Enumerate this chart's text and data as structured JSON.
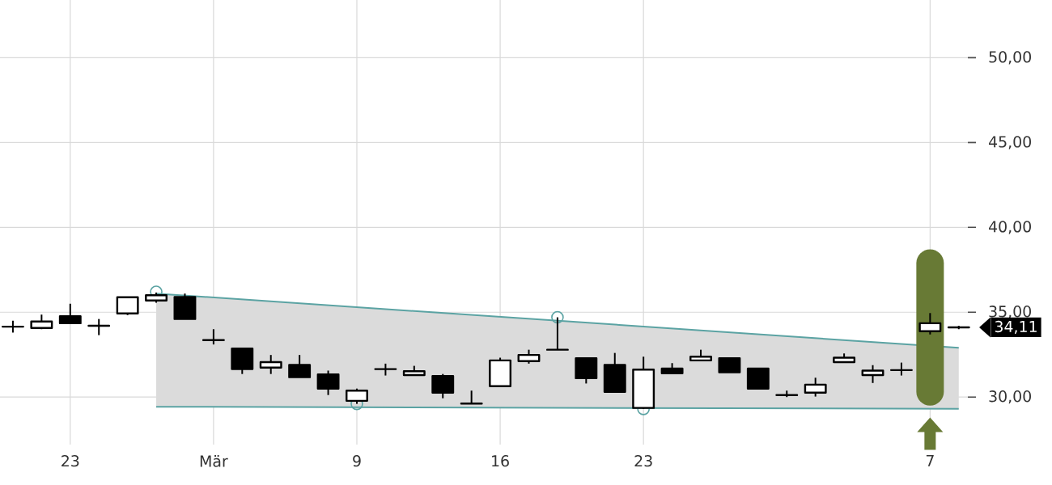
{
  "chart_data": {
    "type": "candlestick",
    "categories": [
      null,
      null,
      "23",
      null,
      null,
      null,
      null,
      "Mär",
      null,
      null,
      null,
      null,
      "9",
      null,
      null,
      null,
      null,
      "16",
      null,
      null,
      null,
      null,
      "23",
      null,
      null,
      null,
      null,
      null,
      null,
      null,
      null,
      null,
      "7",
      null
    ],
    "ohlc": [
      [
        34.15,
        34.5,
        33.8,
        34.15
      ],
      [
        34.07,
        34.86,
        34.0,
        34.45
      ],
      [
        34.76,
        35.5,
        34.35,
        34.35
      ],
      [
        34.2,
        34.6,
        33.65,
        34.2
      ],
      [
        34.93,
        35.88,
        34.83,
        35.88
      ],
      [
        35.69,
        36.16,
        35.56,
        36.0
      ],
      [
        35.9,
        36.1,
        34.6,
        34.6
      ],
      [
        33.36,
        34.0,
        33.1,
        33.36
      ],
      [
        32.86,
        32.86,
        31.36,
        31.65
      ],
      [
        31.74,
        32.48,
        31.36,
        32.06
      ],
      [
        31.9,
        32.48,
        31.17,
        31.17
      ],
      [
        31.33,
        31.56,
        30.12,
        30.5
      ],
      [
        29.78,
        30.5,
        29.6,
        30.38
      ],
      [
        31.65,
        31.97,
        31.27,
        31.65
      ],
      [
        31.3,
        31.84,
        31.3,
        31.52
      ],
      [
        31.24,
        31.36,
        29.93,
        30.26
      ],
      [
        29.62,
        30.38,
        29.62,
        29.62
      ],
      [
        30.64,
        32.32,
        30.64,
        32.16
      ],
      [
        32.12,
        32.79,
        31.97,
        32.48
      ],
      [
        32.79,
        34.7,
        32.79,
        32.79
      ],
      [
        32.29,
        32.29,
        30.8,
        31.11
      ],
      [
        31.9,
        32.6,
        30.31,
        30.31
      ],
      [
        29.36,
        32.38,
        29.3,
        31.62
      ],
      [
        31.68,
        32.0,
        31.4,
        31.4
      ],
      [
        32.16,
        32.79,
        32.16,
        32.38
      ],
      [
        32.29,
        32.29,
        31.46,
        31.46
      ],
      [
        31.68,
        31.68,
        30.5,
        30.5
      ],
      [
        30.12,
        30.38,
        30.0,
        30.12
      ],
      [
        30.26,
        31.14,
        30.03,
        30.73
      ],
      [
        32.06,
        32.57,
        32.06,
        32.32
      ],
      [
        31.3,
        31.88,
        30.83,
        31.56
      ],
      [
        31.59,
        32.03,
        31.27,
        31.59
      ],
      [
        33.88,
        34.95,
        33.69,
        34.35
      ],
      [
        34.11,
        34.2,
        34.0,
        34.11
      ]
    ],
    "series": [
      {
        "type": "line",
        "color": "#5ba3a3",
        "values": [
          null,
          null,
          null,
          null,
          null,
          36.1,
          null,
          null,
          null,
          null,
          null,
          null,
          null,
          null,
          null,
          null,
          null,
          null,
          null,
          null,
          null,
          null,
          null,
          null,
          null,
          null,
          null,
          null,
          null,
          null,
          null,
          null,
          null,
          32.9
        ],
        "upper": [
          null,
          null,
          null,
          null,
          null,
          36.1,
          null,
          null,
          null,
          null,
          null,
          null,
          null,
          null,
          null,
          null,
          null,
          null,
          null,
          null,
          null,
          null,
          null,
          null,
          null,
          null,
          null,
          null,
          null,
          null,
          null,
          null,
          null,
          32.9
        ],
        "lower": [
          null,
          null,
          null,
          null,
          null,
          29.43,
          null,
          null,
          null,
          null,
          null,
          null,
          null,
          null,
          null,
          null,
          null,
          null,
          null,
          null,
          null,
          null,
          null,
          null,
          null,
          null,
          null,
          null,
          null,
          null,
          null,
          null,
          null,
          29.31
        ]
      },
      {
        "type": "line",
        "color": "#5ba3a3",
        "values": [
          null,
          null,
          null,
          null,
          null,
          29.43,
          null,
          null,
          null,
          null,
          null,
          null,
          null,
          null,
          null,
          null,
          null,
          null,
          null,
          null,
          null,
          null,
          null,
          null,
          null,
          null,
          null,
          null,
          null,
          null,
          null,
          null,
          null,
          29.31
        ]
      },
      {
        "type": "scatter",
        "color": "#5ba3a3",
        "marker": "circle",
        "values": [
          null,
          null,
          null,
          null,
          null,
          36.2,
          null,
          null,
          null,
          null,
          null,
          null,
          29.6,
          null,
          null,
          null,
          null,
          null,
          null,
          34.7,
          null,
          null,
          29.3,
          null,
          null,
          null,
          null,
          null,
          null,
          null,
          null,
          null,
          null,
          null
        ]
      }
    ],
    "ylim": [
      27.2,
      53.4
    ],
    "yticks": [
      {
        "value": 30,
        "label": "30,00"
      },
      {
        "value": 35,
        "label": "35,00"
      },
      {
        "value": 40,
        "label": "40,00"
      },
      {
        "value": 45,
        "label": "45,00"
      },
      {
        "value": 50,
        "label": "50,00"
      }
    ],
    "grid": true,
    "annotations": [
      "34,11"
    ]
  }
}
